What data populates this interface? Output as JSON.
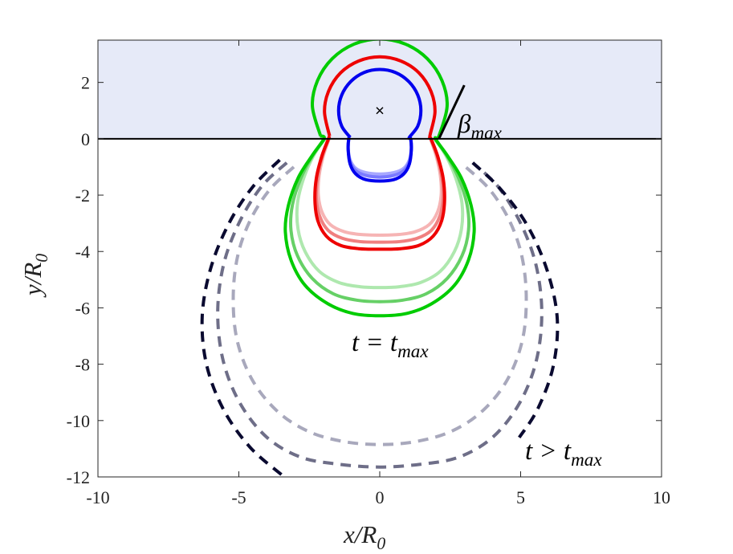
{
  "chart_data": {
    "type": "line",
    "x_label": {
      "base": "x/R",
      "subscript": "0"
    },
    "y_label": {
      "base": "y/R",
      "subscript": "0"
    },
    "xlim": [
      -10,
      10
    ],
    "ylim": [
      -12,
      3.5
    ],
    "xticks": [
      -10,
      -5,
      0,
      5,
      10
    ],
    "yticks": [
      -12,
      -10,
      -8,
      -6,
      -4,
      -2,
      0,
      2
    ],
    "shaded_region": {
      "span": [
        0,
        3.5
      ],
      "color": "#e6eaf8"
    },
    "hline": {
      "y": 0,
      "color": "#000000"
    },
    "center_marker": {
      "x": 0,
      "y": 1,
      "color": "#000000"
    },
    "beta_line": {
      "x": [
        2.1,
        3.0
      ],
      "y": [
        0,
        1.9
      ],
      "color": "#000000"
    },
    "annotations": [
      {
        "base": "β",
        "subscript": "max"
      },
      {
        "base": "t = t",
        "subscript": "max"
      },
      {
        "base": "t > t",
        "subscript": "max"
      }
    ],
    "series": [
      {
        "color": "#a8a8bc",
        "dashed": true,
        "x": [
          -3.05,
          -3.9,
          -4.6,
          -5.05,
          -5.2,
          -5.05,
          -4.5,
          -3.6,
          -2.5,
          -1.25,
          0,
          1.25,
          2.5,
          3.6,
          4.5,
          5.05,
          5.2,
          5.05,
          4.6,
          3.9,
          3.05
        ],
        "y": [
          -1.0,
          -1.8,
          -2.9,
          -4.2,
          -5.7,
          -7.2,
          -8.6,
          -9.7,
          -10.4,
          -10.75,
          -10.85,
          -10.75,
          -10.4,
          -9.7,
          -8.6,
          -7.2,
          -5.7,
          -4.2,
          -2.9,
          -1.8,
          -1.0
        ]
      },
      {
        "color": "#6e6e88",
        "dashed": true,
        "x": [
          -3.3,
          -4.2,
          -5.0,
          -5.55,
          -5.75,
          -5.55,
          -4.95,
          -4.0,
          -2.8,
          -1.45,
          0,
          1.45,
          2.8,
          4.0,
          4.95,
          5.55,
          5.75,
          5.55,
          5.0,
          4.2,
          3.3
        ],
        "y": [
          -0.85,
          -1.7,
          -3.0,
          -4.5,
          -6.2,
          -7.9,
          -9.4,
          -10.6,
          -11.3,
          -11.55,
          -11.65,
          -11.55,
          -11.3,
          -10.6,
          -9.4,
          -7.9,
          -6.2,
          -4.5,
          -3.0,
          -1.7,
          -0.85
        ]
      },
      {
        "color": "#0a0a30",
        "dashed": true,
        "x": [
          -3.55,
          -4.5,
          -5.35,
          -6.0,
          -6.3,
          -6.15,
          -5.55,
          -4.6,
          -3.45,
          null,
          3.3,
          4.3,
          5.25,
          5.95,
          6.3,
          6.15,
          5.6,
          4.95
        ],
        "y": [
          -0.75,
          -1.7,
          -3.0,
          -4.6,
          -6.3,
          -8.0,
          -9.6,
          -10.95,
          -11.95,
          null,
          -0.85,
          -1.8,
          -3.1,
          -4.7,
          -6.4,
          -8.1,
          -9.6,
          -10.6
        ]
      },
      {
        "color": "#aee8ae",
        "x": [
          -1.95,
          -2.35,
          -2.7,
          -2.92,
          -2.9,
          -2.65,
          -2.15,
          -1.45,
          -0.7,
          0,
          0.7,
          1.45,
          2.15,
          2.65,
          2.9,
          2.92,
          2.7,
          2.35,
          1.95
        ],
        "y": [
          0,
          -0.6,
          -1.4,
          -2.3,
          -3.2,
          -4.0,
          -4.7,
          -5.1,
          -5.25,
          -5.28,
          -5.25,
          -5.1,
          -4.7,
          -4.0,
          -3.2,
          -2.3,
          -1.4,
          -0.6,
          0
        ]
      },
      {
        "color": "#66d066",
        "x": [
          -1.95,
          -2.38,
          -2.8,
          -3.1,
          -3.15,
          -2.92,
          -2.4,
          -1.65,
          -0.8,
          0,
          0.8,
          1.65,
          2.4,
          2.92,
          3.15,
          3.1,
          2.8,
          2.38,
          1.95
        ],
        "y": [
          0,
          -0.6,
          -1.4,
          -2.35,
          -3.25,
          -4.15,
          -4.95,
          -5.5,
          -5.73,
          -5.78,
          -5.73,
          -5.5,
          -4.95,
          -4.15,
          -3.25,
          -2.35,
          -1.4,
          -0.6,
          0
        ]
      },
      {
        "color": "#00cc00",
        "x": [
          -2.1,
          -2.39,
          -2.21,
          -1.69,
          -0.91,
          0,
          0.91,
          1.69,
          2.21,
          2.39,
          2.1,
          1.98,
          2.4,
          2.9,
          3.25,
          3.35,
          3.15,
          2.65,
          1.85,
          0.95,
          0,
          -0.95,
          -1.85,
          -2.65,
          -3.15,
          -3.35,
          -3.25,
          -2.9,
          -2.4,
          -1.98,
          -2.1
        ],
        "y": [
          0.1,
          1.15,
          2.06,
          2.84,
          3.36,
          3.54,
          3.36,
          2.84,
          2.06,
          1.15,
          0.1,
          0,
          -0.6,
          -1.4,
          -2.4,
          -3.3,
          -4.3,
          -5.2,
          -5.85,
          -6.2,
          -6.28,
          -6.2,
          -5.85,
          -5.2,
          -4.3,
          -3.3,
          -2.4,
          -1.4,
          -0.6,
          0,
          0.1
        ]
      },
      {
        "color": "#f6b4b4",
        "x": [
          -1.8,
          -2.0,
          -2.15,
          -2.18,
          -2.05,
          -1.75,
          -1.25,
          -0.65,
          0,
          0.65,
          1.25,
          1.75,
          2.05,
          2.18,
          2.15,
          2.0,
          1.8
        ],
        "y": [
          0,
          -0.6,
          -1.3,
          -2.0,
          -2.6,
          -3.05,
          -3.3,
          -3.4,
          -3.42,
          -3.4,
          -3.3,
          -3.05,
          -2.6,
          -2.0,
          -1.3,
          -0.6,
          0
        ]
      },
      {
        "color": "#f08080",
        "x": [
          -1.8,
          -2.03,
          -2.2,
          -2.25,
          -2.13,
          -1.83,
          -1.33,
          -0.7,
          0,
          0.7,
          1.33,
          1.83,
          2.13,
          2.25,
          2.2,
          2.03,
          1.8
        ],
        "y": [
          0,
          -0.6,
          -1.35,
          -2.1,
          -2.75,
          -3.25,
          -3.53,
          -3.65,
          -3.67,
          -3.65,
          -3.53,
          -3.25,
          -2.75,
          -2.1,
          -1.35,
          -0.6,
          0
        ]
      },
      {
        "color": "#ee0000",
        "x": [
          -1.78,
          -1.96,
          -1.82,
          -1.39,
          -0.75,
          0,
          0.75,
          1.39,
          1.82,
          1.96,
          1.78,
          1.82,
          2.05,
          2.25,
          2.3,
          2.2,
          1.9,
          1.4,
          0.75,
          0,
          -0.75,
          -1.4,
          -1.9,
          -2.2,
          -2.3,
          -2.25,
          -2.05,
          -1.82,
          -1.78
        ],
        "y": [
          0.1,
          0.95,
          1.68,
          2.34,
          2.76,
          2.91,
          2.76,
          2.34,
          1.68,
          0.95,
          0.1,
          0,
          -0.6,
          -1.4,
          -2.2,
          -2.9,
          -3.45,
          -3.78,
          -3.9,
          -3.92,
          -3.9,
          -3.78,
          -3.45,
          -2.9,
          -2.2,
          -1.4,
          -0.6,
          0,
          0.1
        ]
      },
      {
        "color": "#a8a8ff",
        "x": [
          -1.1,
          -1.12,
          -1.05,
          -0.85,
          -0.5,
          0,
          0.5,
          0.85,
          1.05,
          1.12,
          1.1
        ],
        "y": [
          0,
          -0.35,
          -0.75,
          -1.05,
          -1.2,
          -1.25,
          -1.2,
          -1.05,
          -0.75,
          -0.35,
          0
        ]
      },
      {
        "color": "#7a7aff",
        "x": [
          -1.1,
          -1.12,
          -1.05,
          -0.85,
          -0.5,
          0,
          0.5,
          0.85,
          1.05,
          1.12,
          1.1
        ],
        "y": [
          0,
          -0.38,
          -0.82,
          -1.13,
          -1.3,
          -1.36,
          -1.3,
          -1.13,
          -0.82,
          -0.38,
          0
        ]
      },
      {
        "color": "#0000ee",
        "x": [
          -1.05,
          -1.35,
          -1.46,
          -1.35,
          -1.03,
          -0.56,
          0,
          0.56,
          1.03,
          1.35,
          1.46,
          1.35,
          1.05,
          1.1,
          1.12,
          1.05,
          0.85,
          0.5,
          0,
          -0.5,
          -0.85,
          -1.05,
          -1.12,
          -1.1,
          -1.05
        ],
        "y": [
          0.05,
          0.45,
          1.0,
          1.55,
          2.03,
          2.35,
          2.46,
          2.35,
          2.03,
          1.55,
          1.0,
          0.45,
          0.05,
          0,
          -0.4,
          -0.9,
          -1.25,
          -1.45,
          -1.5,
          -1.45,
          -1.25,
          -0.9,
          -0.4,
          0,
          0.05
        ]
      }
    ]
  }
}
